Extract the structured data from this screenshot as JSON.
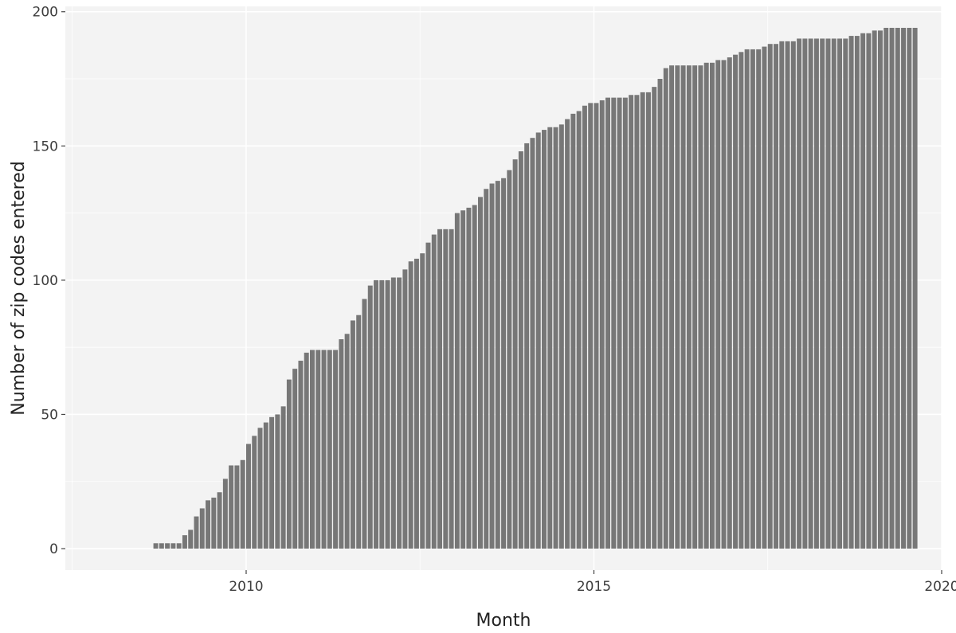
{
  "chart_data": {
    "type": "bar",
    "title": "",
    "xlabel": "Month",
    "ylabel": "Number of zip codes entered",
    "x_axis": {
      "min_year": 2007.4,
      "max_year": 2020.0,
      "ticks": [
        {
          "value": 2010,
          "label": "2010"
        },
        {
          "value": 2015,
          "label": "2015"
        },
        {
          "value": 2020,
          "label": "2020"
        }
      ]
    },
    "y_axis": {
      "min": -8,
      "max": 202,
      "ticks": [
        {
          "value": 0,
          "label": "0"
        },
        {
          "value": 50,
          "label": "50"
        },
        {
          "value": 100,
          "label": "100"
        },
        {
          "value": 150,
          "label": "150"
        },
        {
          "value": 200,
          "label": "200"
        }
      ]
    },
    "grid": true,
    "legend": "none",
    "colors": {
      "bar": "#777777",
      "panel": "#f3f3f3",
      "gridline": "#ffffff"
    },
    "x_start_month": "2008-09",
    "values": [
      2,
      2,
      2,
      2,
      2,
      5,
      7,
      12,
      15,
      18,
      19,
      21,
      26,
      31,
      31,
      33,
      39,
      42,
      45,
      47,
      49,
      50,
      53,
      63,
      67,
      70,
      73,
      74,
      74,
      74,
      74,
      74,
      78,
      80,
      85,
      87,
      93,
      98,
      100,
      100,
      100,
      101,
      101,
      104,
      107,
      108,
      110,
      114,
      117,
      119,
      119,
      119,
      125,
      126,
      127,
      128,
      131,
      134,
      136,
      137,
      138,
      141,
      145,
      148,
      151,
      153,
      155,
      156,
      157,
      157,
      158,
      160,
      162,
      163,
      165,
      166,
      166,
      167,
      168,
      168,
      168,
      168,
      169,
      169,
      170,
      170,
      172,
      175,
      179,
      180,
      180,
      180,
      180,
      180,
      180,
      181,
      181,
      182,
      182,
      183,
      184,
      185,
      186,
      186,
      186,
      187,
      188,
      188,
      189,
      189,
      189,
      190,
      190,
      190,
      190,
      190,
      190,
      190,
      190,
      190,
      191,
      191,
      192,
      192,
      193,
      193,
      194,
      194,
      194,
      194,
      194,
      194
    ]
  }
}
